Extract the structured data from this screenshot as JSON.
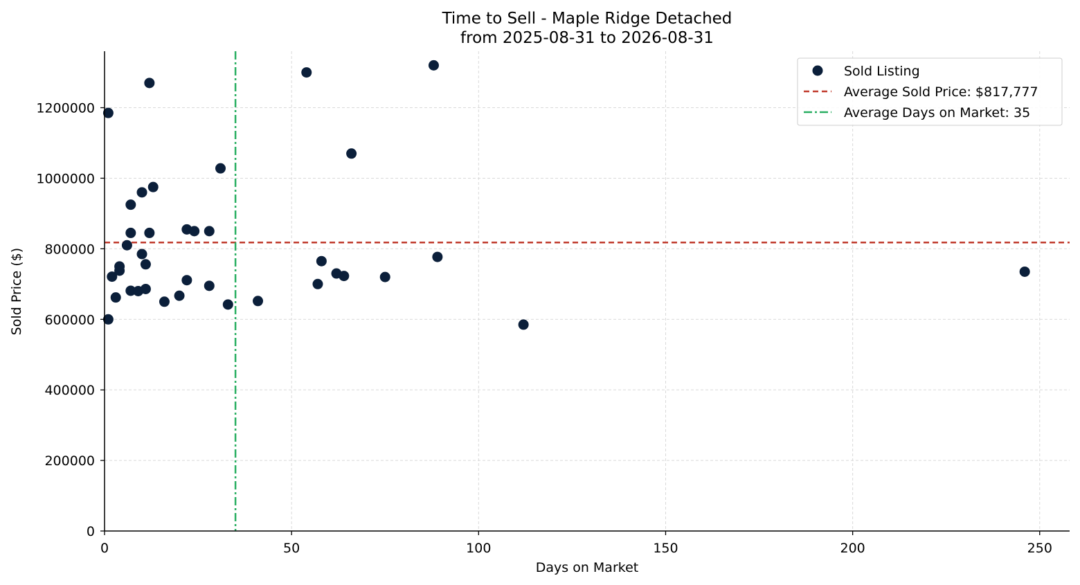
{
  "chart_data": {
    "type": "scatter",
    "title": "Time to Sell - Maple Ridge Detached",
    "subtitle": "from 2025-08-31 to 2026-08-31",
    "xlabel": "Days on Market",
    "ylabel": "Sold Price ($)",
    "xlim": [
      0,
      258
    ],
    "ylim": [
      0,
      1360000
    ],
    "xticks": [
      0,
      50,
      100,
      150,
      200,
      250
    ],
    "yticks": [
      0,
      200000,
      400000,
      600000,
      800000,
      1000000,
      1200000
    ],
    "grid": true,
    "legend_position": "top-right",
    "colors": {
      "points": "#0b1f3a",
      "avg_price_line": "#c0392b",
      "avg_days_line": "#27ae60",
      "grid": "#d9d9d9",
      "axis": "#000000"
    },
    "series": [
      {
        "name": "Sold Listing",
        "points": [
          {
            "x": 1,
            "y": 1185000
          },
          {
            "x": 1,
            "y": 600000
          },
          {
            "x": 2,
            "y": 721000
          },
          {
            "x": 3,
            "y": 662000
          },
          {
            "x": 4,
            "y": 738000
          },
          {
            "x": 4,
            "y": 750000
          },
          {
            "x": 6,
            "y": 810000
          },
          {
            "x": 7,
            "y": 925000
          },
          {
            "x": 7,
            "y": 845000
          },
          {
            "x": 7,
            "y": 681000
          },
          {
            "x": 9,
            "y": 680000
          },
          {
            "x": 10,
            "y": 960000
          },
          {
            "x": 10,
            "y": 785000
          },
          {
            "x": 11,
            "y": 756000
          },
          {
            "x": 11,
            "y": 686000
          },
          {
            "x": 12,
            "y": 1270000
          },
          {
            "x": 12,
            "y": 845000
          },
          {
            "x": 13,
            "y": 975000
          },
          {
            "x": 16,
            "y": 650000
          },
          {
            "x": 20,
            "y": 667000
          },
          {
            "x": 22,
            "y": 855000
          },
          {
            "x": 22,
            "y": 711000
          },
          {
            "x": 24,
            "y": 850000
          },
          {
            "x": 28,
            "y": 850000
          },
          {
            "x": 28,
            "y": 695000
          },
          {
            "x": 31,
            "y": 1028000
          },
          {
            "x": 33,
            "y": 642000
          },
          {
            "x": 41,
            "y": 652000
          },
          {
            "x": 54,
            "y": 1300000
          },
          {
            "x": 57,
            "y": 700000
          },
          {
            "x": 58,
            "y": 765000
          },
          {
            "x": 62,
            "y": 730000
          },
          {
            "x": 64,
            "y": 723000
          },
          {
            "x": 66,
            "y": 1070000
          },
          {
            "x": 75,
            "y": 720000
          },
          {
            "x": 88,
            "y": 1320000
          },
          {
            "x": 89,
            "y": 777000
          },
          {
            "x": 112,
            "y": 585000
          },
          {
            "x": 246,
            "y": 735000
          }
        ]
      }
    ],
    "reference_lines": [
      {
        "name": "Average Sold Price: $817,777",
        "orientation": "horizontal",
        "value": 817777,
        "style": "dashed"
      },
      {
        "name": "Average Days on Market: 35",
        "orientation": "vertical",
        "value": 35,
        "style": "dashdot"
      }
    ],
    "legend": [
      {
        "label": "Sold Listing",
        "kind": "marker"
      },
      {
        "label": "Average Sold Price: $817,777",
        "kind": "dashed"
      },
      {
        "label": "Average Days on Market: 35",
        "kind": "dashdot"
      }
    ]
  }
}
